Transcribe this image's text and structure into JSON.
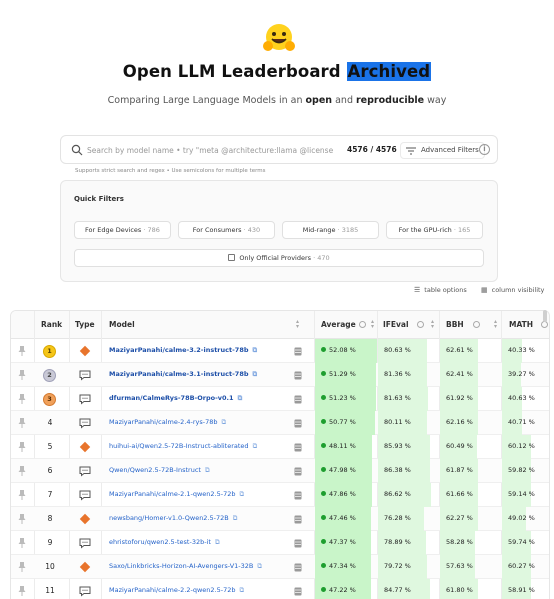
{
  "header": {
    "title_main": "Open LLM Leaderboard ",
    "title_highlight": "Archived",
    "subtitle_pre": "Comparing Large Language Models in an ",
    "subtitle_open": "open",
    "subtitle_mid": " and ",
    "subtitle_repro": "reproducible",
    "subtitle_post": " way"
  },
  "search": {
    "placeholder": "Search by model name • try \"meta @architecture:llama @license:mit\"",
    "count": "4576 / 4576",
    "advanced_filters_label": "Advanced Filters",
    "hint": "Supports strict search and regex • Use semicolons for multiple terms"
  },
  "quick_filters": {
    "title": "Quick Filters",
    "buttons": [
      {
        "label": "For Edge Devices",
        "count": "· 786"
      },
      {
        "label": "For Consumers",
        "count": "· 430"
      },
      {
        "label": "Mid-range",
        "count": "· 3185"
      },
      {
        "label": "For the GPU-rich",
        "count": "· 165"
      }
    ],
    "official_label": "Only Official Providers",
    "official_count": "· 470"
  },
  "table_controls": {
    "table_options": "table options",
    "column_visibility": "column visibility"
  },
  "table": {
    "headers": {
      "rank": "Rank",
      "type": "Type",
      "model": "Model",
      "average": "Average",
      "ifeval": "IFEval",
      "bbh": "BBH",
      "math": "MATH"
    },
    "rows": [
      {
        "rank": "1",
        "type": "diamond",
        "model": "MaziyarPanahi/calme-3.2-instruct-78b",
        "average": "52.08 %",
        "avg_fill": 1.0,
        "ifeval": "80.63 %",
        "ifeval_fill": 0.81,
        "bbh": "62.61 %",
        "bbh_fill": 0.63,
        "math": "40.33 %",
        "math_fill": 0.4
      },
      {
        "rank": "2",
        "type": "chat",
        "model": "MaziyarPanahi/calme-3.1-instruct-78b",
        "average": "51.29 %",
        "avg_fill": 0.98,
        "ifeval": "81.36 %",
        "ifeval_fill": 0.81,
        "bbh": "62.41 %",
        "bbh_fill": 0.62,
        "math": "39.27 %",
        "math_fill": 0.39
      },
      {
        "rank": "3",
        "type": "chat",
        "model": "dfurman/CalmeRys-78B-Orpo-v0.1",
        "average": "51.23 %",
        "avg_fill": 0.98,
        "ifeval": "81.63 %",
        "ifeval_fill": 0.82,
        "bbh": "61.92 %",
        "bbh_fill": 0.62,
        "math": "40.63 %",
        "math_fill": 0.41
      },
      {
        "rank": "4",
        "type": "chat",
        "model": "MaziyarPanahi/calme-2.4-rys-78b",
        "average": "50.77 %",
        "avg_fill": 0.97,
        "ifeval": "80.11 %",
        "ifeval_fill": 0.8,
        "bbh": "62.16 %",
        "bbh_fill": 0.62,
        "math": "40.71 %",
        "math_fill": 0.41
      },
      {
        "rank": "5",
        "type": "diamond",
        "model": "huihui-ai/Qwen2.5-72B-Instruct-abliterated",
        "average": "48.11 %",
        "avg_fill": 0.92,
        "ifeval": "85.93 %",
        "ifeval_fill": 0.86,
        "bbh": "60.49 %",
        "bbh_fill": 0.6,
        "math": "60.12 %",
        "math_fill": 0.6
      },
      {
        "rank": "6",
        "type": "chat",
        "model": "Qwen/Qwen2.5-72B-Instruct",
        "average": "47.98 %",
        "avg_fill": 0.92,
        "ifeval": "86.38 %",
        "ifeval_fill": 0.86,
        "bbh": "61.87 %",
        "bbh_fill": 0.62,
        "math": "59.82 %",
        "math_fill": 0.6
      },
      {
        "rank": "7",
        "type": "chat",
        "model": "MaziyarPanahi/calme-2.1-qwen2.5-72b",
        "average": "47.86 %",
        "avg_fill": 0.92,
        "ifeval": "86.62 %",
        "ifeval_fill": 0.87,
        "bbh": "61.66 %",
        "bbh_fill": 0.62,
        "math": "59.14 %",
        "math_fill": 0.59
      },
      {
        "rank": "8",
        "type": "diamond",
        "model": "newsbang/Homer-v1.0-Qwen2.5-72B",
        "average": "47.46 %",
        "avg_fill": 0.91,
        "ifeval": "76.28 %",
        "ifeval_fill": 0.76,
        "bbh": "62.27 %",
        "bbh_fill": 0.62,
        "math": "49.02 %",
        "math_fill": 0.49
      },
      {
        "rank": "9",
        "type": "chat",
        "model": "ehristoforu/qwen2.5-test-32b-it",
        "average": "47.37 %",
        "avg_fill": 0.91,
        "ifeval": "78.89 %",
        "ifeval_fill": 0.79,
        "bbh": "58.28 %",
        "bbh_fill": 0.58,
        "math": "59.74 %",
        "math_fill": 0.6
      },
      {
        "rank": "10",
        "type": "diamond",
        "model": "Saxo/Linkbricks-Horizon-AI-Avengers-V1-32B",
        "average": "47.34 %",
        "avg_fill": 0.91,
        "ifeval": "79.72 %",
        "ifeval_fill": 0.8,
        "bbh": "57.63 %",
        "bbh_fill": 0.58,
        "math": "60.27 %",
        "math_fill": 0.6
      },
      {
        "rank": "11",
        "type": "chat",
        "model": "MaziyarPanahi/calme-2.2-qwen2.5-72b",
        "average": "47.22 %",
        "avg_fill": 0.91,
        "ifeval": "84.77 %",
        "ifeval_fill": 0.85,
        "bbh": "61.80 %",
        "bbh_fill": 0.62,
        "math": "58.91 %",
        "math_fill": 0.59
      }
    ]
  },
  "colors": {
    "avg_bar": "#c9f5c9",
    "metric_bar": "#dff8df",
    "diamond": "#e8742c",
    "gold": "#f5c518",
    "silver": "#c9c9d6",
    "bronze": "#f0a05a",
    "highlight": "#1a73e8"
  }
}
